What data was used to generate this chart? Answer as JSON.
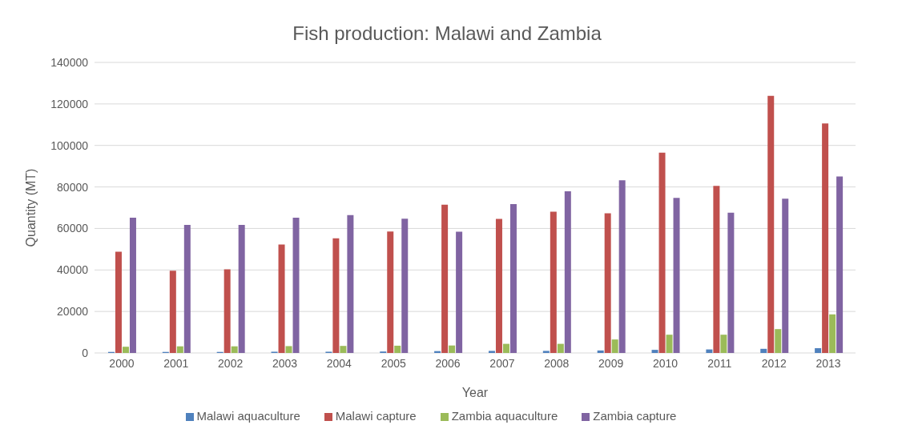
{
  "chart_data": {
    "type": "bar",
    "title": "Fish production: Malawi and Zambia",
    "xlabel": "Year",
    "ylabel": "Quantity (MT)",
    "categories": [
      "2000",
      "2001",
      "2002",
      "2003",
      "2004",
      "2005",
      "2006",
      "2007",
      "2008",
      "2009",
      "2010",
      "2011",
      "2012",
      "2013"
    ],
    "series": [
      {
        "name": "Malawi aquaculture",
        "color": "#4f81bd",
        "values": [
          500,
          500,
          500,
          600,
          600,
          700,
          900,
          1000,
          1000,
          1200,
          1500,
          1700,
          2000,
          2300
        ]
      },
      {
        "name": "Malawi capture",
        "color": "#c0504d",
        "values": [
          48800,
          39600,
          40300,
          52300,
          55200,
          58500,
          71400,
          64600,
          68100,
          67300,
          96500,
          80500,
          123900,
          110600
        ]
      },
      {
        "name": "Zambia aquaculture",
        "color": "#9bbb59",
        "values": [
          3000,
          3200,
          3200,
          3300,
          3400,
          3500,
          3600,
          4400,
          4400,
          6500,
          8800,
          8800,
          11500,
          18600
        ]
      },
      {
        "name": "Zambia capture",
        "color": "#8064a2",
        "values": [
          65200,
          61700,
          61700,
          65200,
          66400,
          64700,
          58400,
          71700,
          77900,
          83200,
          74700,
          67600,
          74300,
          85000
        ]
      }
    ],
    "ylim": [
      0,
      140000
    ],
    "yticks": [
      0,
      20000,
      40000,
      60000,
      80000,
      100000,
      120000,
      140000
    ],
    "grid": "y",
    "legend": "bottom"
  }
}
